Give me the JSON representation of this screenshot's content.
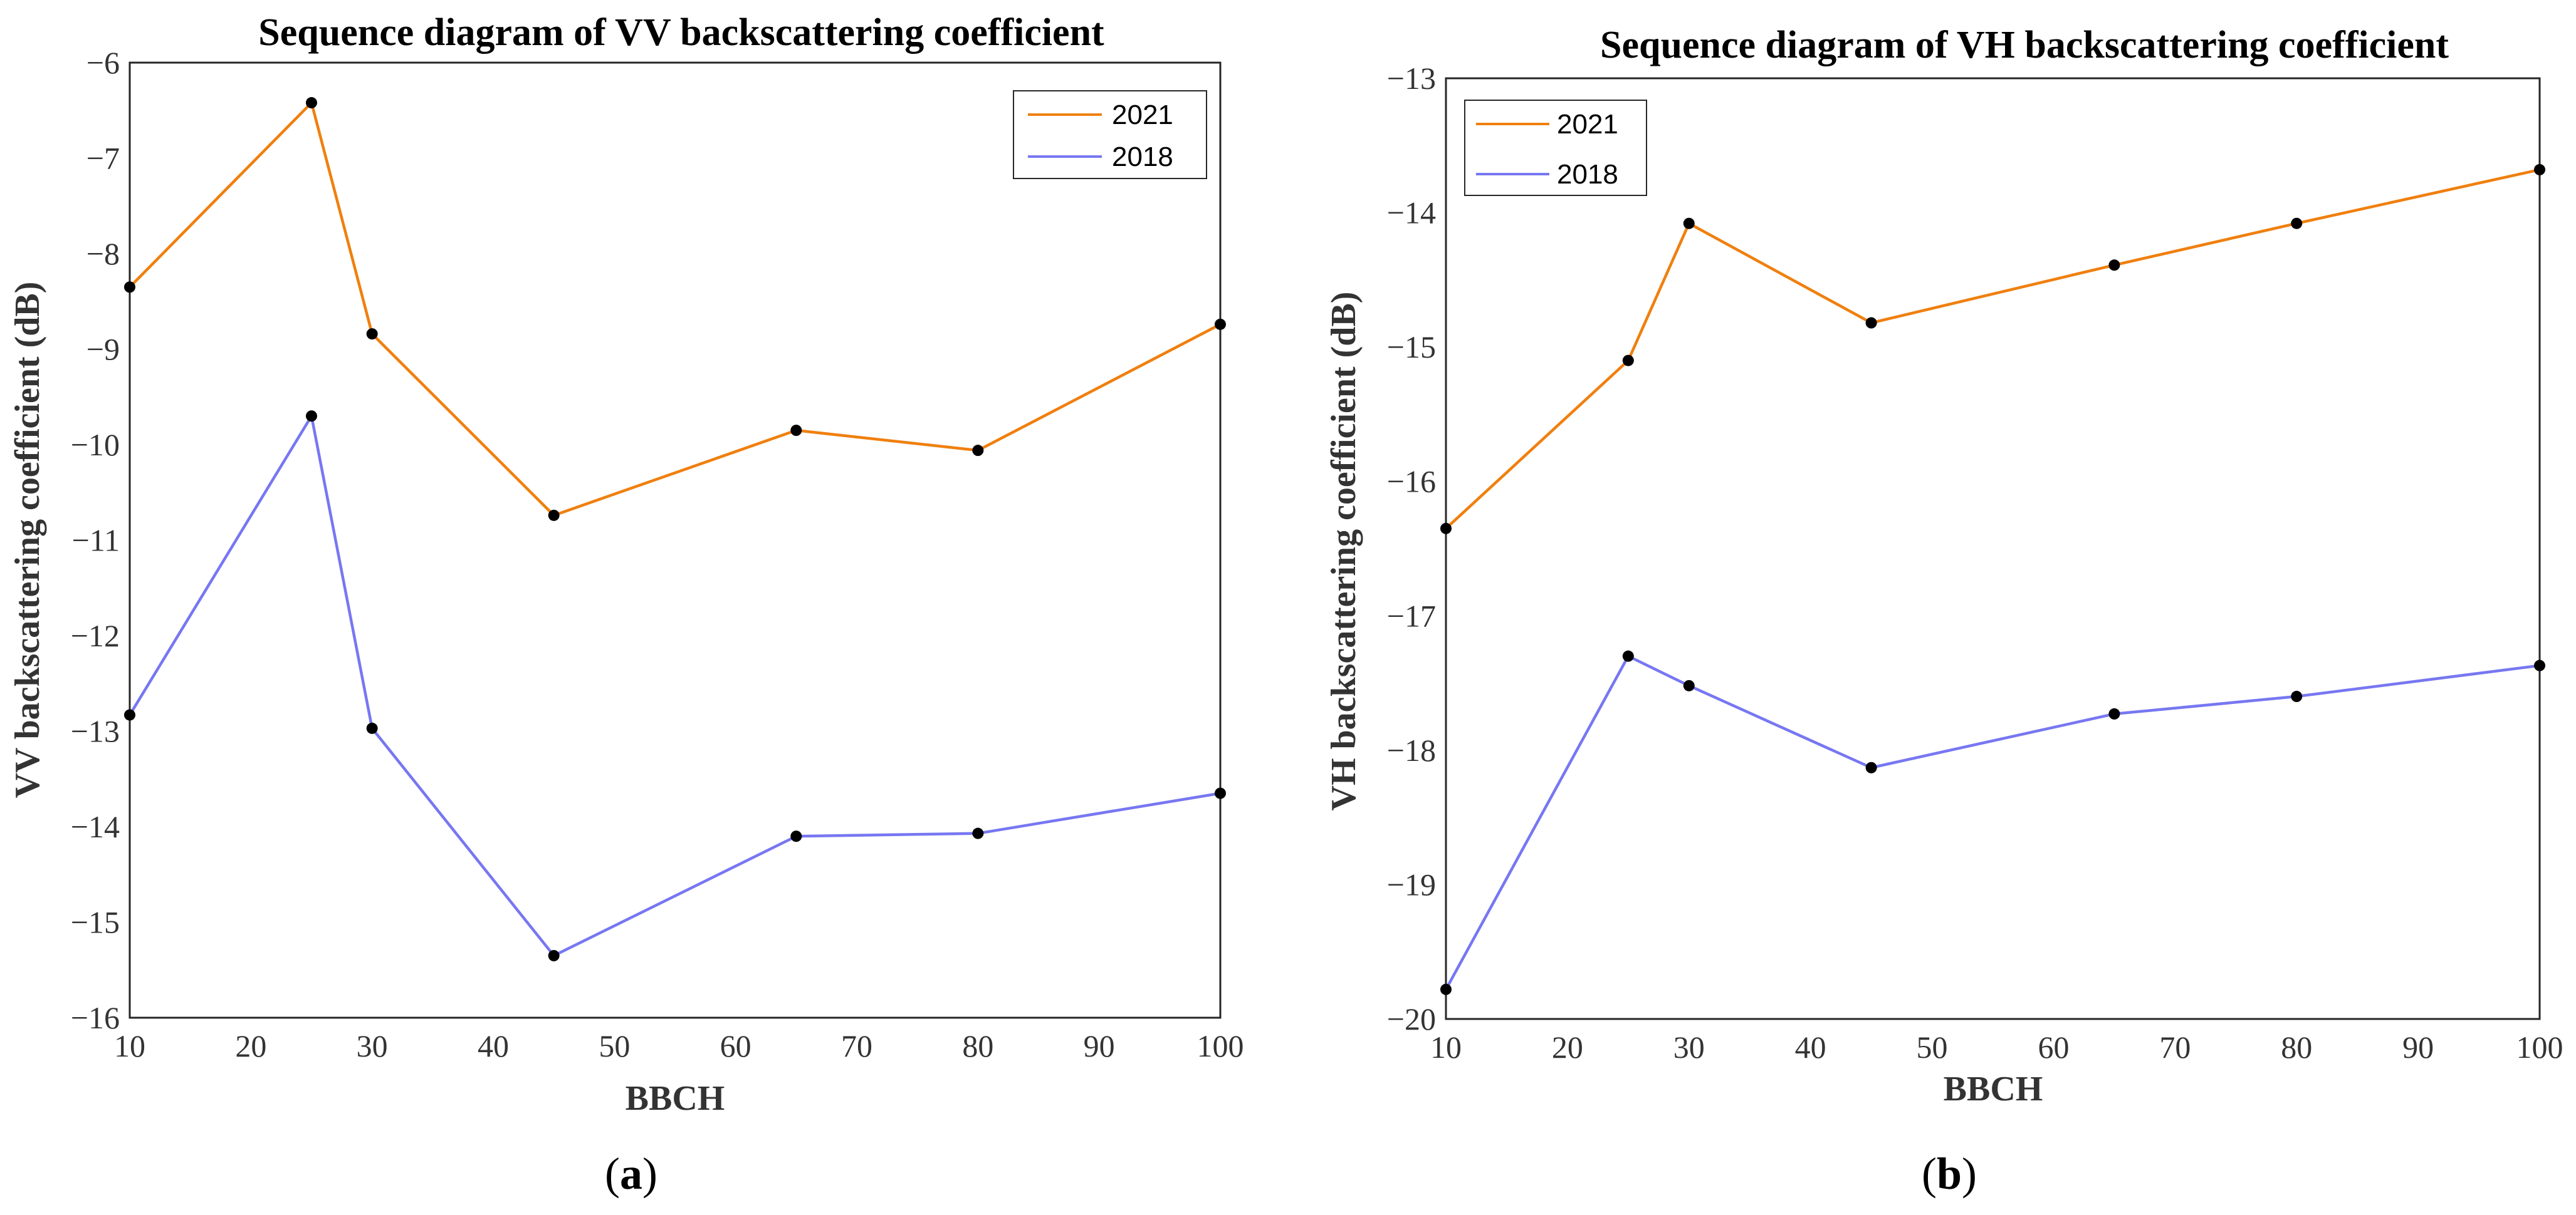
{
  "chart_data": [
    {
      "type": "line",
      "panel_label": "a",
      "title": "Sequence diagram of VV backscattering coefficient",
      "xlabel": "BBCH",
      "ylabel": "VV backscattering coefficient (dB)",
      "x": [
        10,
        25,
        30,
        45,
        65,
        80,
        100
      ],
      "xlim": [
        10,
        100
      ],
      "ylim": [
        -16,
        -6
      ],
      "xticks": [
        10,
        20,
        30,
        40,
        50,
        60,
        70,
        80,
        90,
        100
      ],
      "yticks": [
        -16,
        -15,
        -14,
        -13,
        -12,
        -11,
        -10,
        -9,
        -8,
        -7,
        -6
      ],
      "xtick_labels": [
        "10",
        "20",
        "30",
        "40",
        "50",
        "60",
        "70",
        "80",
        "90",
        "100"
      ],
      "ytick_labels": [
        "−16",
        "−15",
        "−14",
        "−13",
        "−12",
        "−11",
        "−10",
        "−9",
        "−8",
        "−7",
        "−6"
      ],
      "legend_position": "top-right",
      "grid": false,
      "series": [
        {
          "name": "2021",
          "color": "#F07F0E",
          "values": [
            -8.35,
            -6.42,
            -8.84,
            -10.74,
            -9.85,
            -10.06,
            -8.74
          ]
        },
        {
          "name": "2018",
          "color": "#7777F2",
          "values": [
            -12.83,
            -9.7,
            -12.97,
            -15.35,
            -14.1,
            -14.07,
            -13.65
          ]
        }
      ]
    },
    {
      "type": "line",
      "panel_label": "b",
      "title": "Sequence diagram of VH backscattering coefficient",
      "xlabel": "BBCH",
      "ylabel": "VH backscattering coefficient (dB)",
      "x": [
        10,
        25,
        30,
        45,
        65,
        80,
        100
      ],
      "xlim": [
        10,
        100
      ],
      "ylim": [
        -20,
        -13
      ],
      "xticks": [
        10,
        20,
        30,
        40,
        50,
        60,
        70,
        80,
        90,
        100
      ],
      "yticks": [
        -20,
        -19,
        -18,
        -17,
        -16,
        -15,
        -14,
        -13
      ],
      "xtick_labels": [
        "10",
        "20",
        "30",
        "40",
        "50",
        "60",
        "70",
        "80",
        "90",
        "100"
      ],
      "ytick_labels": [
        "−20",
        "−19",
        "−18",
        "−17",
        "−16",
        "−15",
        "−14",
        "−13"
      ],
      "legend_position": "top-left",
      "grid": false,
      "series": [
        {
          "name": "2021",
          "color": "#F07F0E",
          "values": [
            -16.35,
            -15.1,
            -14.08,
            -14.82,
            -14.39,
            -14.08,
            -13.68
          ]
        },
        {
          "name": "2018",
          "color": "#7777F2",
          "values": [
            -19.78,
            -17.3,
            -17.52,
            -18.13,
            -17.73,
            -17.6,
            -17.37
          ]
        }
      ]
    }
  ]
}
